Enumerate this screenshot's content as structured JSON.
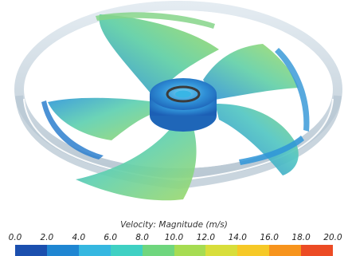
{
  "legend": {
    "title": "Velocity: Magnitude (m/s)",
    "ticks": [
      "0.0",
      "2.0",
      "4.0",
      "6.0",
      "8.0",
      "10.0",
      "12.0",
      "14.0",
      "16.0",
      "18.0",
      "20.0"
    ],
    "range": [
      0,
      20
    ],
    "colors": [
      "#1b4fae",
      "#1f86d2",
      "#35b7e0",
      "#3fd0c3",
      "#6fd67e",
      "#a6dc52",
      "#d8de3b",
      "#f6c927",
      "#f7941d",
      "#ec4b24"
    ]
  },
  "colors": {
    "housing_ring": "#b8c8d4",
    "hub": "#2f8fd6",
    "blade_blue": "#3aa8dc",
    "blade_green": "#79cf86"
  }
}
